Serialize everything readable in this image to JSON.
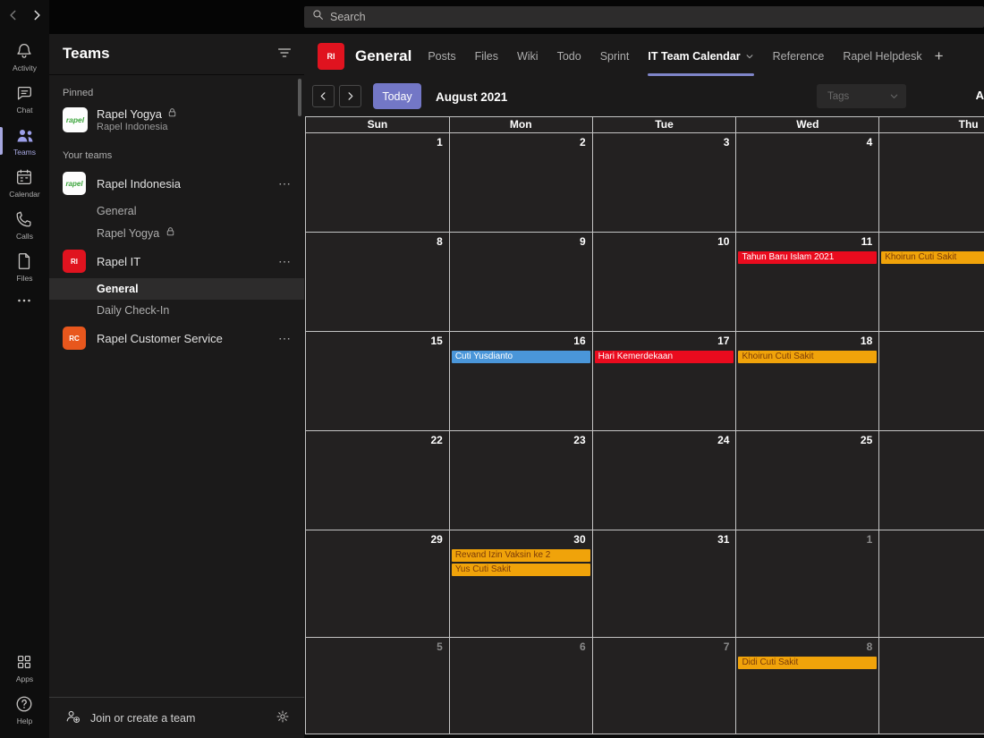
{
  "colors": {
    "accent_purple": "#7377c6",
    "tab_underline": "#7f85c9",
    "rail_active": "#a6a7e0",
    "grid_border": "#c4c4c4",
    "event_colors": {
      "red": {
        "bg": "#ea0b1e",
        "text": "#ffffff"
      },
      "blue": {
        "bg": "#4a96d9",
        "text": "#ffffff"
      },
      "orange": {
        "bg": "#f0a30a",
        "text": "#7a3a08"
      }
    }
  },
  "rail": {
    "top_items": [
      {
        "id": "activity",
        "label": "Activity"
      },
      {
        "id": "chat",
        "label": "Chat"
      },
      {
        "id": "teams",
        "label": "Teams",
        "active": true
      },
      {
        "id": "calendar",
        "label": "Calendar"
      },
      {
        "id": "calls",
        "label": "Calls"
      },
      {
        "id": "files",
        "label": "Files"
      },
      {
        "id": "more",
        "label": ""
      }
    ],
    "bottom_items": [
      {
        "id": "apps",
        "label": "Apps"
      },
      {
        "id": "help",
        "label": "Help"
      }
    ]
  },
  "sidebar": {
    "title": "Teams",
    "pinned_label": "Pinned",
    "pinned": [
      {
        "name": "Rapel Yogya",
        "subtitle": "Rapel Indonesia",
        "locked": true,
        "avatar": {
          "type": "logo",
          "text": "rapel"
        }
      }
    ],
    "your_teams_label": "Your teams",
    "teams": [
      {
        "name": "Rapel Indonesia",
        "avatar": {
          "type": "logo",
          "text": "rapel"
        },
        "channels": [
          {
            "name": "General"
          },
          {
            "name": "Rapel Yogya",
            "locked": true
          }
        ]
      },
      {
        "name": "Rapel IT",
        "avatar": {
          "type": "initials",
          "text": "RI",
          "bg": "#e0131f"
        },
        "channels": [
          {
            "name": "General",
            "selected": true
          },
          {
            "name": "Daily Check-In"
          }
        ]
      },
      {
        "name": "Rapel Customer Service",
        "avatar": {
          "type": "initials",
          "text": "RC",
          "bg": "#e8571d"
        },
        "channels": []
      }
    ],
    "footer": {
      "join_label": "Join or create a team"
    }
  },
  "topbar": {
    "search_placeholder": "Search"
  },
  "channel_header": {
    "team_initials": "RI",
    "team_color": "#e0131f",
    "title": "General",
    "tabs": [
      {
        "label": "Posts"
      },
      {
        "label": "Files"
      },
      {
        "label": "Wiki"
      },
      {
        "label": "Todo"
      },
      {
        "label": "Sprint"
      },
      {
        "label": "IT Team Calendar",
        "active": true,
        "chevron": true
      },
      {
        "label": "Reference"
      },
      {
        "label": "Rapel Helpdesk"
      }
    ],
    "add_tab": "+"
  },
  "toolbar": {
    "today_label": "Today",
    "month_label": "August 2021",
    "tags_label": "Tags",
    "add_button_partial": "A"
  },
  "calendar": {
    "day_headers": [
      "Sun",
      "Mon",
      "Tue",
      "Wed",
      "Thu"
    ],
    "weeks": [
      {
        "days": [
          {
            "num": "1"
          },
          {
            "num": "2"
          },
          {
            "num": "3"
          },
          {
            "num": "4"
          },
          {
            "num": ""
          }
        ]
      },
      {
        "days": [
          {
            "num": "8"
          },
          {
            "num": "9"
          },
          {
            "num": "10"
          },
          {
            "num": "11",
            "events": [
              {
                "label": "Tahun Baru Islam 2021",
                "color": "red"
              }
            ]
          },
          {
            "num": "",
            "events": [
              {
                "label": "Khoirun Cuti Sakit",
                "color": "orange"
              }
            ]
          }
        ]
      },
      {
        "days": [
          {
            "num": "15"
          },
          {
            "num": "16",
            "events": [
              {
                "label": "Cuti Yusdianto",
                "color": "blue"
              }
            ]
          },
          {
            "num": "17",
            "events": [
              {
                "label": "Hari Kemerdekaan",
                "color": "red"
              }
            ]
          },
          {
            "num": "18",
            "events": [
              {
                "label": "Khoirun Cuti Sakit",
                "color": "orange"
              }
            ]
          },
          {
            "num": ""
          }
        ]
      },
      {
        "days": [
          {
            "num": "22"
          },
          {
            "num": "23"
          },
          {
            "num": "24"
          },
          {
            "num": "25"
          },
          {
            "num": ""
          }
        ]
      },
      {
        "days": [
          {
            "num": "29"
          },
          {
            "num": "30",
            "events": [
              {
                "label": "Revand Izin Vaksin ke 2",
                "color": "orange"
              },
              {
                "label": "Yus Cuti Sakit",
                "color": "orange"
              }
            ]
          },
          {
            "num": "31"
          },
          {
            "num": "1",
            "out": true
          },
          {
            "num": ""
          }
        ]
      },
      {
        "days": [
          {
            "num": "5",
            "out": true
          },
          {
            "num": "6",
            "out": true
          },
          {
            "num": "7",
            "out": true
          },
          {
            "num": "8",
            "out": true,
            "events": [
              {
                "label": "Didi Cuti Sakit",
                "color": "orange"
              }
            ]
          },
          {
            "num": ""
          }
        ]
      }
    ]
  }
}
